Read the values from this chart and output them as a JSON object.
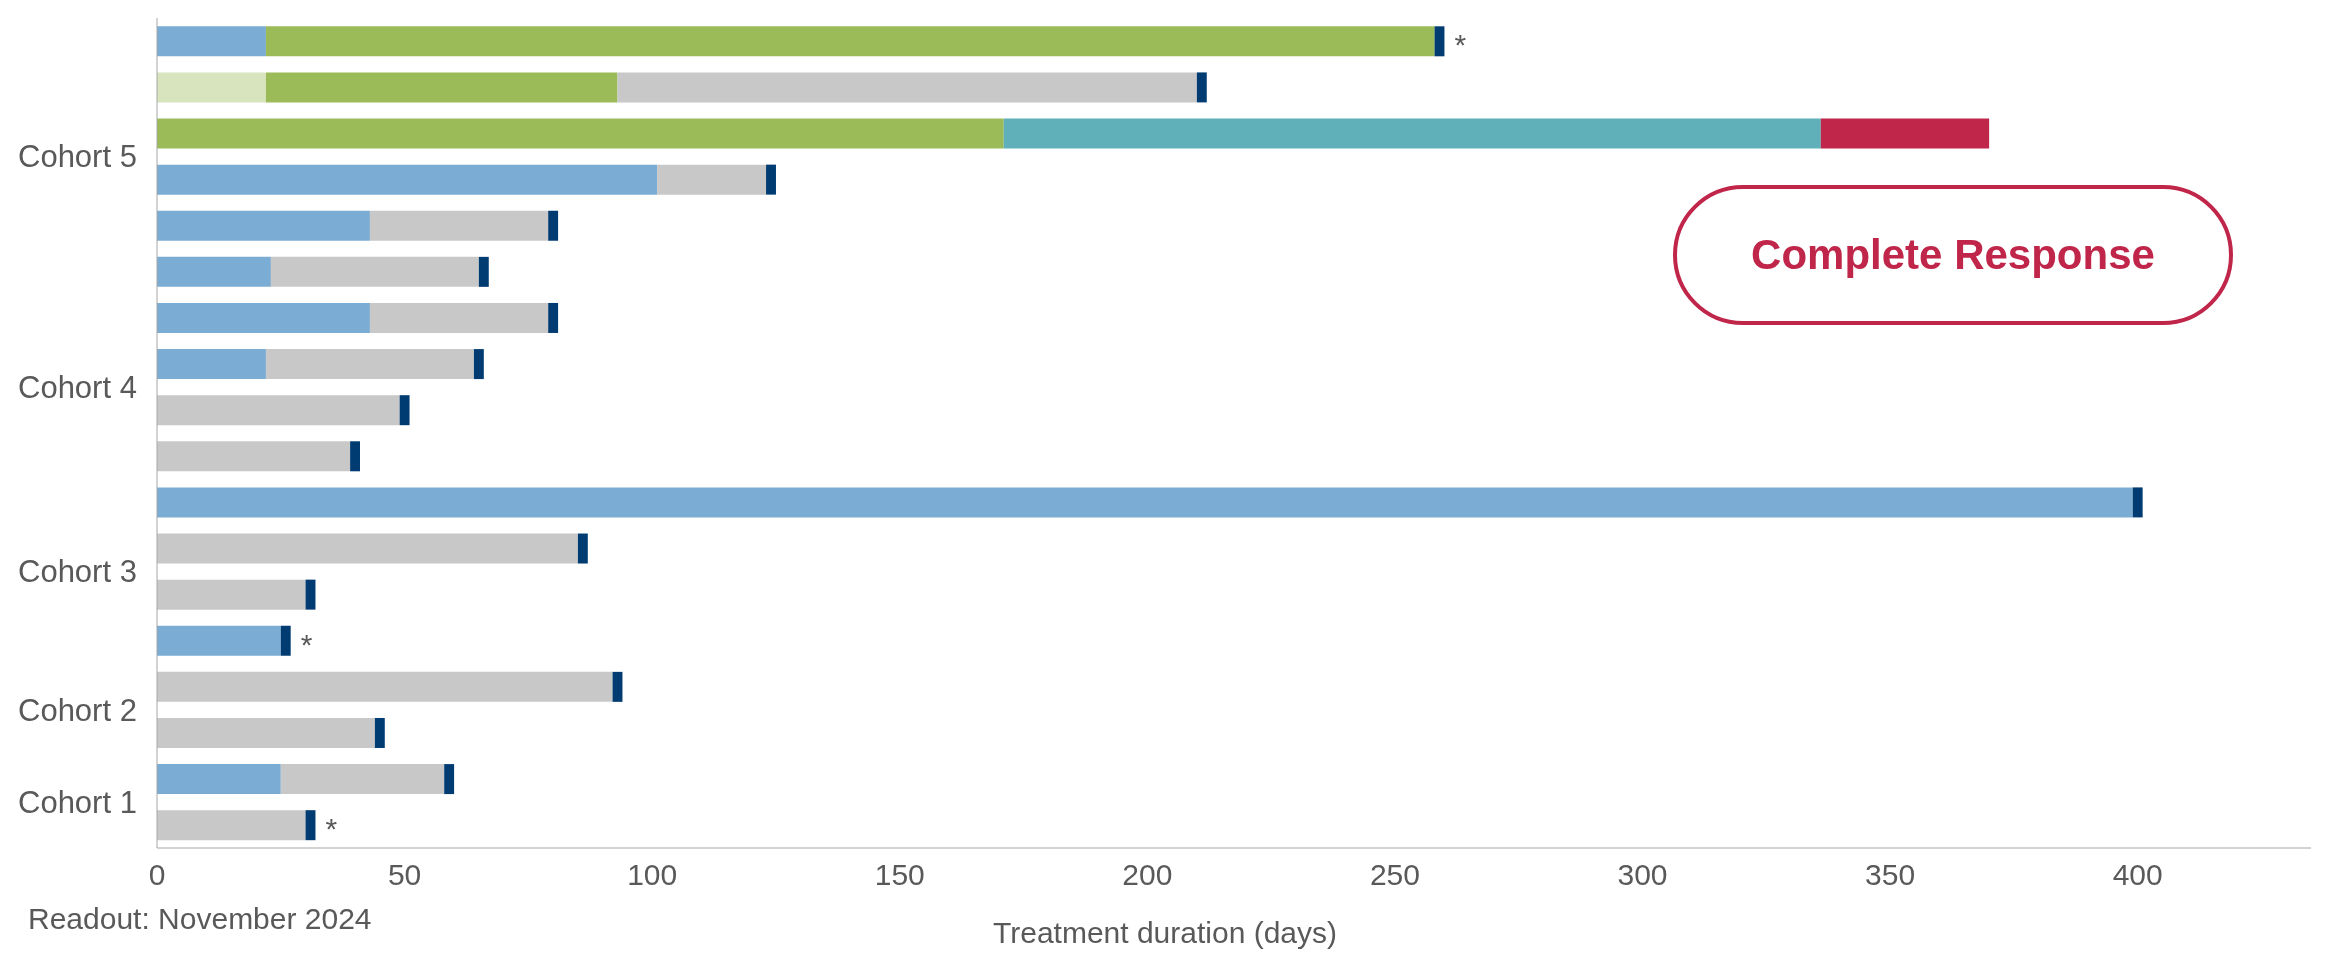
{
  "chart_data": {
    "type": "bar",
    "orientation": "horizontal",
    "stacked": true,
    "categories": [
      null,
      null,
      "Cohort 5",
      null,
      null,
      null,
      null,
      "Cohort 4",
      null,
      null,
      null,
      "Cohort 3",
      null,
      null,
      "Cohort 2",
      null,
      "Cohort 1",
      null
    ],
    "series": [
      {
        "colors": [
          "#7bacd4",
          "#d7e4bd",
          "#9bbb59",
          "#7bacd4",
          "#7bacd4",
          "#7bacd4",
          "#7bacd4",
          "#7bacd4",
          "#c8c8c8",
          "#c8c8c8",
          "#7bacd4",
          "#c8c8c8",
          "#c8c8c8",
          "#7bacd4",
          "#c8c8c8",
          "#c8c8c8",
          "#7bacd4",
          "#c8c8c8"
        ],
        "values": [
          22,
          22,
          171,
          101,
          43,
          23,
          43,
          22,
          49,
          39,
          399,
          85,
          30,
          25,
          92,
          44,
          25,
          30
        ]
      },
      {
        "colors": [
          "#9bbb59",
          "#9bbb59",
          "#5fb0b8",
          "#c8c8c8",
          "#c8c8c8",
          "#c8c8c8",
          "#c8c8c8",
          "#c8c8c8",
          null,
          null,
          null,
          null,
          null,
          null,
          null,
          null,
          "#c8c8c8",
          null
        ],
        "values": [
          236,
          71,
          165,
          22,
          36,
          42,
          36,
          42,
          null,
          null,
          null,
          null,
          null,
          null,
          null,
          null,
          33,
          null
        ]
      },
      {
        "colors": [
          null,
          "#c8c8c8",
          "#c0264a",
          null,
          null,
          null,
          null,
          null,
          null,
          null,
          null,
          null,
          null,
          null,
          null,
          null,
          null,
          null
        ],
        "values": [
          null,
          117,
          34,
          null,
          null,
          null,
          null,
          null,
          null,
          null,
          null,
          null,
          null,
          null,
          null,
          null,
          null,
          null
        ]
      },
      {
        "color": "#003b71",
        "values": [
          2,
          2,
          null,
          2,
          2,
          2,
          2,
          2,
          2,
          2,
          2,
          2,
          2,
          2,
          2,
          2,
          2,
          2
        ],
        "value_labels": [
          "*",
          null,
          null,
          null,
          null,
          null,
          null,
          null,
          null,
          null,
          null,
          null,
          null,
          "*",
          null,
          null,
          null,
          "*"
        ]
      }
    ],
    "xlim": [
      0,
      435
    ],
    "xticks": [
      0,
      50,
      100,
      150,
      200,
      250,
      300,
      350,
      400
    ],
    "xlabel": "Treatment duration (days)",
    "annotations": [
      "Complete Response",
      "Readout: November 2024"
    ]
  }
}
